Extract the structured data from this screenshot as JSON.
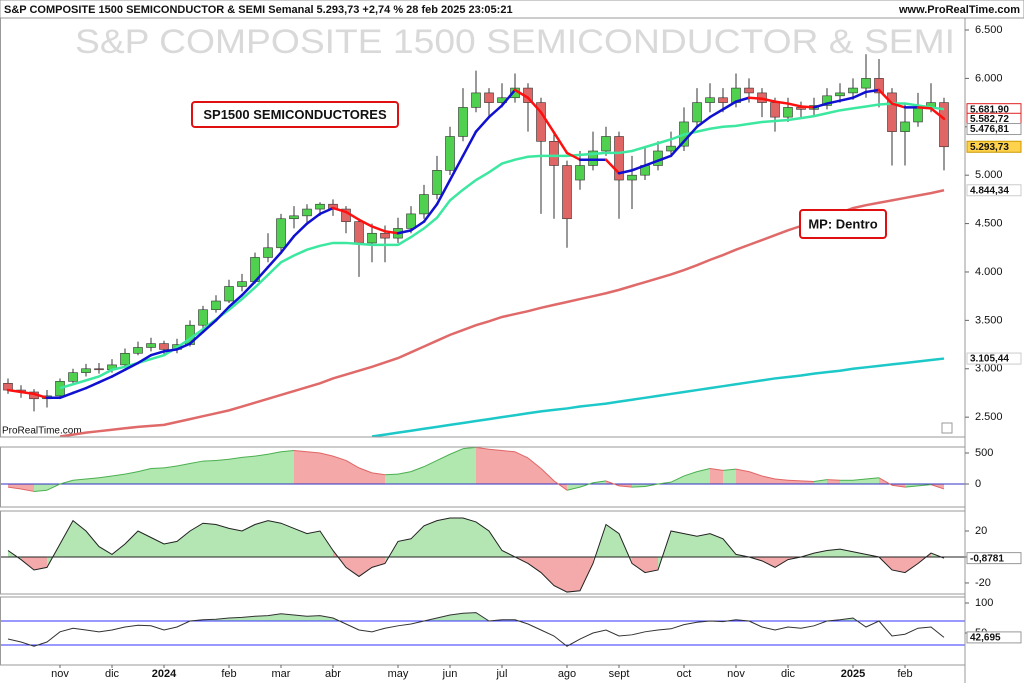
{
  "header": {
    "title": "S&P COMPOSITE 1500 SEMICONDUCTOR & SEMI Semanal 5.293,73 +2,74 % 28 feb 2025 23:05:21",
    "site": "www.ProRealTime.com"
  },
  "chart_data": [
    {
      "type": "candlestick",
      "title": "S&P COMPOSITE 1500 SEMICONDUCTOR & SEMI",
      "watermark": "ProRealTime.com",
      "categories": [
        null,
        null,
        null,
        null,
        "nov",
        null,
        null,
        null,
        "dic",
        null,
        null,
        null,
        "2024",
        null,
        null,
        null,
        null,
        "feb",
        null,
        null,
        null,
        "mar",
        null,
        null,
        null,
        "abr",
        null,
        null,
        null,
        null,
        "may",
        null,
        null,
        null,
        "jun",
        null,
        null,
        null,
        "jul",
        null,
        null,
        null,
        null,
        "ago",
        null,
        null,
        null,
        "sept",
        null,
        null,
        null,
        null,
        "oct",
        null,
        null,
        null,
        "nov",
        null,
        null,
        null,
        "dic",
        null,
        null,
        null,
        null,
        "2025",
        null,
        null,
        null,
        "feb",
        null,
        null,
        null
      ],
      "open": [
        2850,
        2780,
        2760,
        2690,
        2720,
        2870,
        2960,
        3000,
        2990,
        3040,
        3160,
        3220,
        3260,
        3200,
        3250,
        3450,
        3610,
        3700,
        3850,
        3900,
        4150,
        4250,
        4550,
        4580,
        4650,
        4700,
        4650,
        4520,
        4300,
        4400,
        4350,
        4450,
        4600,
        4800,
        5050,
        5400,
        5700,
        5850,
        5750,
        5800,
        5900,
        5750,
        5350,
        5100,
        4950,
        5100,
        5250,
        5400,
        4950,
        5000,
        5100,
        5250,
        5300,
        5550,
        5750,
        5800,
        5750,
        5900,
        5850,
        5750,
        5600,
        5700,
        5680,
        5720,
        5820,
        5850,
        5900,
        6000,
        5850,
        5450,
        5550,
        5700,
        5750
      ],
      "high": [
        2900,
        2830,
        2790,
        2780,
        2900,
        3000,
        3050,
        3060,
        3100,
        3210,
        3280,
        3320,
        3290,
        3310,
        3500,
        3650,
        3760,
        3920,
        3980,
        4200,
        4400,
        4600,
        4680,
        4700,
        4720,
        4750,
        4680,
        4550,
        4500,
        4480,
        4560,
        4680,
        4900,
        5200,
        5500,
        5900,
        6080,
        5900,
        5950,
        6050,
        5950,
        5800,
        5450,
        5150,
        5250,
        5450,
        5500,
        5450,
        5200,
        5300,
        5350,
        5450,
        5700,
        5900,
        5950,
        5900,
        6050,
        6000,
        5900,
        5800,
        5800,
        5760,
        5800,
        5900,
        5950,
        6000,
        6250,
        6200,
        5900,
        5750,
        5850,
        5950,
        5800
      ],
      "low": [
        2740,
        2700,
        2560,
        2600,
        2700,
        2840,
        2920,
        2950,
        2960,
        3020,
        3140,
        3180,
        3150,
        3160,
        3230,
        3420,
        3580,
        3680,
        3800,
        3880,
        4100,
        4200,
        4450,
        4500,
        4580,
        4580,
        4400,
        3950,
        4100,
        4100,
        4300,
        4400,
        4550,
        4750,
        5000,
        5350,
        5650,
        5600,
        5700,
        5750,
        5450,
        4600,
        4550,
        4250,
        4850,
        5050,
        5200,
        4550,
        4650,
        4950,
        5050,
        5200,
        5250,
        5500,
        5650,
        5650,
        5700,
        5750,
        5600,
        5450,
        5550,
        5600,
        5620,
        5680,
        5750,
        5780,
        5800,
        5700,
        5100,
        5100,
        5500,
        5650,
        5050
      ],
      "close": [
        2780,
        2760,
        2690,
        2720,
        2870,
        2960,
        3000,
        2990,
        3040,
        3160,
        3220,
        3260,
        3200,
        3250,
        3450,
        3610,
        3700,
        3850,
        3900,
        4150,
        4250,
        4550,
        4580,
        4650,
        4700,
        4650,
        4520,
        4300,
        4400,
        4350,
        4450,
        4600,
        4800,
        5050,
        5400,
        5700,
        5850,
        5750,
        5800,
        5900,
        5750,
        5350,
        5100,
        4550,
        5100,
        5250,
        5400,
        4950,
        5000,
        5100,
        5250,
        5300,
        5550,
        5750,
        5800,
        5750,
        5900,
        5850,
        5750,
        5600,
        5700,
        5680,
        5720,
        5820,
        5850,
        5900,
        6000,
        5850,
        5450,
        5550,
        5700,
        5750,
        5293.73
      ],
      "up_color": "#4fd14f",
      "down_color": "#e06666",
      "wick_color": "#333333",
      "series": [
        {
          "color": "#e06a6a",
          "values": [
            null,
            null,
            null,
            null,
            2300,
            2320,
            2340,
            2355,
            2370,
            2385,
            2400,
            2410,
            2420,
            2450,
            2480,
            2510,
            2540,
            2570,
            2610,
            2650,
            2690,
            2730,
            2770,
            2810,
            2850,
            2900,
            2940,
            2980,
            3020,
            3065,
            3110,
            3170,
            3230,
            3290,
            3350,
            3400,
            3450,
            3490,
            3535,
            3565,
            3595,
            3630,
            3660,
            3690,
            3720,
            3750,
            3780,
            3815,
            3855,
            3895,
            3935,
            3975,
            4020,
            4070,
            4125,
            4175,
            4230,
            4280,
            4330,
            4380,
            4430,
            4475,
            4520,
            4565,
            4610,
            4660,
            4690,
            4715,
            4740,
            4765,
            4790,
            4815,
            4844.34
          ]
        },
        {
          "color": "#1cc8c8",
          "values": [
            null,
            null,
            null,
            null,
            null,
            null,
            null,
            null,
            null,
            null,
            null,
            null,
            null,
            null,
            null,
            null,
            null,
            null,
            null,
            null,
            null,
            null,
            null,
            null,
            null,
            null,
            null,
            null,
            2300,
            2320,
            2340,
            2360,
            2380,
            2400,
            2420,
            2440,
            2460,
            2480,
            2500,
            2520,
            2540,
            2560,
            2575,
            2590,
            2610,
            2625,
            2640,
            2660,
            2680,
            2700,
            2720,
            2740,
            2760,
            2780,
            2800,
            2820,
            2840,
            2860,
            2880,
            2900,
            2915,
            2930,
            2950,
            2965,
            2980,
            3000,
            3015,
            3030,
            3045,
            3060,
            3075,
            3090,
            3105.44
          ]
        },
        {
          "color": "#3ce8a0",
          "values": [
            null,
            null,
            null,
            null,
            2800,
            2840,
            2880,
            2920,
            2990,
            3020,
            3060,
            3100,
            3140,
            3220,
            3310,
            3410,
            3510,
            3610,
            3720,
            3840,
            3970,
            4100,
            4170,
            4230,
            4270,
            4300,
            4300,
            4290,
            4280,
            4280,
            4280,
            4360,
            4450,
            4560,
            4740,
            4850,
            4950,
            5030,
            5120,
            5160,
            5190,
            5200,
            5200,
            5200,
            5210,
            5220,
            5230,
            5230,
            5250,
            5290,
            5330,
            5370,
            5420,
            5450,
            5480,
            5500,
            5510,
            5530,
            5550,
            5560,
            5570,
            5590,
            5610,
            5640,
            5670,
            5690,
            5710,
            5730,
            5740,
            5740,
            5720,
            5700,
            5681.9
          ]
        },
        {
          "color": "#1010d0",
          "down_color": "#ff1010",
          "values": [
            2780,
            2760,
            2740,
            2700,
            2700,
            2750,
            2800,
            2860,
            2920,
            2990,
            3060,
            3140,
            3180,
            3200,
            3260,
            3380,
            3500,
            3640,
            3760,
            3900,
            4050,
            4200,
            4370,
            4500,
            4600,
            4660,
            4620,
            4540,
            4470,
            4420,
            4400,
            4430,
            4520,
            4700,
            4950,
            5200,
            5450,
            5600,
            5720,
            5880,
            5800,
            5650,
            5440,
            5230,
            5160,
            5160,
            5160,
            5020,
            5050,
            5100,
            5150,
            5200,
            5350,
            5500,
            5600,
            5680,
            5760,
            5800,
            5790,
            5760,
            5740,
            5710,
            5700,
            5740,
            5770,
            5800,
            5860,
            5880,
            5740,
            5700,
            5700,
            5690,
            5582.72
          ]
        }
      ],
      "ylim": [
        2295,
        6624
      ],
      "yticks": [
        {
          "value": 6500,
          "label": "6.500"
        },
        {
          "value": 6000,
          "label": "6.000"
        },
        {
          "value": 5500,
          "label": "5.500"
        },
        {
          "value": 5000,
          "label": "5.000"
        },
        {
          "value": 4500,
          "label": "4.500"
        },
        {
          "value": 4000,
          "label": "4.000"
        },
        {
          "value": 3500,
          "label": "3.500"
        },
        {
          "value": 3000,
          "label": "3.000"
        },
        {
          "value": 2500,
          "label": "2.500"
        }
      ],
      "last_values": [
        {
          "value": 5681.9,
          "label": "5.681,90",
          "color": "#e02020",
          "background": "#ffffff",
          "border": "#e02020"
        },
        {
          "value": 5582.72,
          "label": "5.582,72",
          "color": "#e02020",
          "background": "#ffffff",
          "border": "#e02020"
        },
        {
          "value": 5476.81,
          "label": "5.476,81",
          "color": "#000000",
          "background": "#ffffff",
          "border": "#999999"
        },
        {
          "value": 5293.73,
          "label": "5.293,73",
          "color": "#000000",
          "background": "#ffd24d",
          "border": "#cc9900"
        },
        {
          "value": 4844.34,
          "label": "4.844,34",
          "color": "#c05050",
          "background": "#ffffff",
          "border": "#cccccc"
        },
        {
          "value": 3105.44,
          "label": "3.105,44",
          "color": "#109898",
          "background": "#ffffff",
          "border": "#cccccc"
        }
      ],
      "annotations": [
        {
          "text": "SP1500 SEMICONDUCTORES",
          "color": "#1a1aa8",
          "border": "#e01010"
        },
        {
          "text": "MP: Dentro",
          "color": "#1a1aa8",
          "border": "#e01010"
        }
      ]
    },
    {
      "type": "area",
      "color_mode": "slope",
      "up_color": "#b0e8b0",
      "down_color": "#f4a8a8",
      "line_up_color": "#4caf50",
      "line_down_color": "#e06666",
      "values": [
        -50,
        -80,
        -120,
        -100,
        0,
        60,
        80,
        100,
        130,
        160,
        200,
        250,
        260,
        290,
        330,
        370,
        380,
        400,
        430,
        450,
        480,
        520,
        540,
        520,
        500,
        450,
        380,
        260,
        180,
        150,
        160,
        200,
        280,
        380,
        480,
        570,
        590,
        560,
        540,
        520,
        420,
        250,
        50,
        -100,
        -50,
        20,
        50,
        -30,
        -50,
        -40,
        0,
        30,
        130,
        200,
        250,
        220,
        240,
        200,
        130,
        80,
        60,
        50,
        40,
        70,
        60,
        60,
        80,
        100,
        -20,
        -50,
        -30,
        -10,
        -80
      ],
      "ylim": [
        -371,
        597
      ],
      "yticks": [
        500,
        0
      ],
      "hlines": [
        0
      ],
      "hline_color": "#3030c0"
    },
    {
      "type": "area",
      "color_mode": "sign",
      "up_color": "#b4e6b4",
      "down_color": "#f4aaaa",
      "line_color": "#222222",
      "values": [
        5,
        -2,
        -10,
        -8,
        10,
        28,
        20,
        8,
        2,
        10,
        20,
        15,
        10,
        12,
        20,
        26,
        25,
        22,
        20,
        25,
        28,
        26,
        22,
        18,
        20,
        5,
        -8,
        -15,
        -8,
        -5,
        12,
        14,
        24,
        28,
        30,
        30,
        27,
        20,
        5,
        0,
        -5,
        -12,
        -22,
        -27,
        -26,
        -5,
        25,
        18,
        -5,
        -12,
        -10,
        20,
        18,
        16,
        18,
        14,
        2,
        0,
        -3,
        -8,
        -2,
        0,
        3,
        5,
        6,
        4,
        2,
        0,
        -10,
        -12,
        -5,
        3,
        -0.8781
      ],
      "last_label": "-0,8781",
      "ylim": [
        -28.5,
        35.4
      ],
      "yticks": [
        20,
        0,
        -20
      ],
      "hlines": [
        0
      ],
      "hline_color": "#222222"
    },
    {
      "type": "line",
      "fill_color": "#b4e6b4",
      "line_color": "#333333",
      "values": [
        40,
        35,
        28,
        35,
        52,
        58,
        55,
        52,
        55,
        60,
        63,
        62,
        55,
        60,
        70,
        72,
        73,
        75,
        76,
        78,
        79,
        82,
        80,
        78,
        79,
        75,
        65,
        55,
        52,
        58,
        62,
        65,
        70,
        75,
        80,
        83,
        84,
        70,
        72,
        72,
        65,
        55,
        45,
        28,
        40,
        50,
        55,
        45,
        47,
        52,
        55,
        57,
        64,
        68,
        70,
        69,
        72,
        70,
        60,
        55,
        60,
        58,
        62,
        70,
        72,
        75,
        60,
        70,
        45,
        48,
        58,
        60,
        42.695
      ],
      "last_label": "42,695",
      "ylim": [
        -3.3,
        110
      ],
      "yticks": [
        100,
        50
      ],
      "hlines": [
        70,
        30
      ],
      "hline_color": "#3333ff"
    }
  ]
}
